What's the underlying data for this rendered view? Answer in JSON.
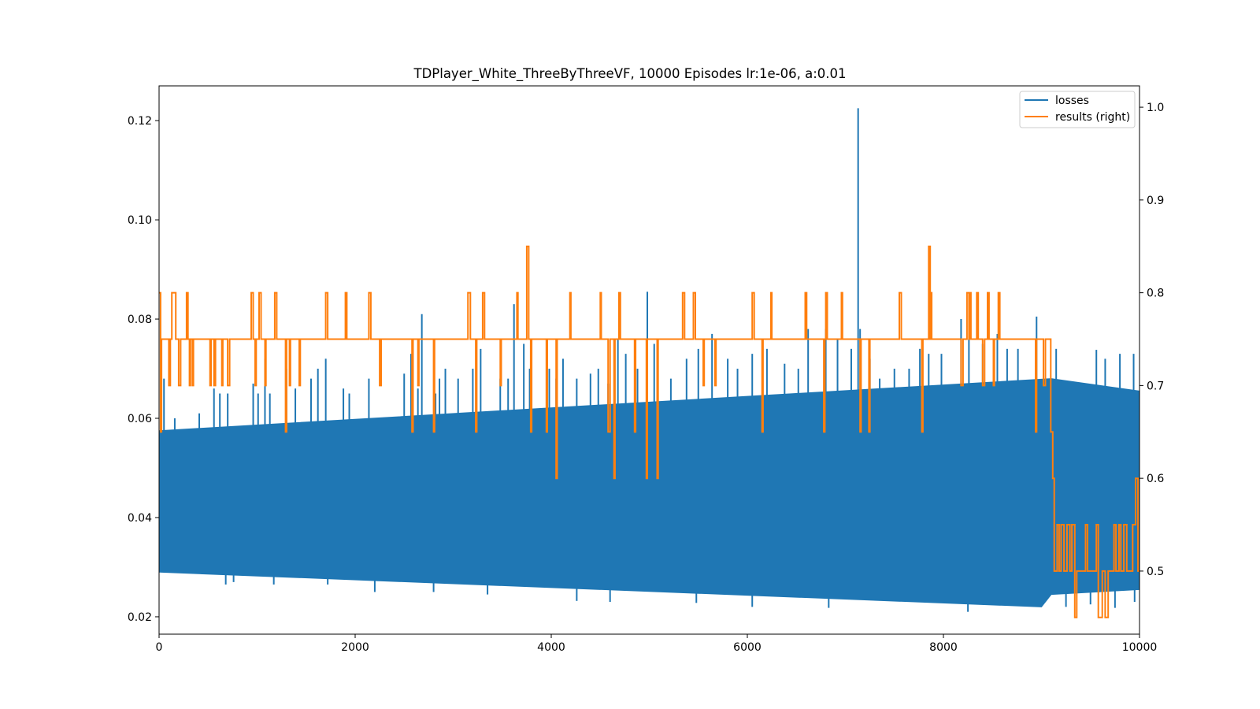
{
  "colors": {
    "losses": "#1f77b4",
    "results": "#ff7f0e"
  },
  "chart_data": {
    "type": "line",
    "title": "TDPlayer_White_ThreeByThreeVF, 10000 Episodes lr:1e-06, a:0.01",
    "xlabel": "",
    "ylabel": "",
    "xlim": [
      0,
      10000
    ],
    "ylim_left": [
      0.0165,
      0.127
    ],
    "ylim_right": [
      0.432,
      1.023
    ],
    "x_ticks": [
      0,
      2000,
      4000,
      6000,
      8000,
      10000
    ],
    "x_tick_labels": [
      "0",
      "2000",
      "4000",
      "6000",
      "8000",
      "10000"
    ],
    "y_left_ticks": [
      0.02,
      0.04,
      0.06,
      0.08,
      0.1,
      0.12
    ],
    "y_left_tick_labels": [
      "0.02",
      "0.04",
      "0.06",
      "0.08",
      "0.10",
      "0.12"
    ],
    "y_right_ticks": [
      0.5,
      0.6,
      0.7,
      0.8,
      0.9,
      1.0
    ],
    "y_right_tick_labels": [
      "0.5",
      "0.6",
      "0.7",
      "0.8",
      "0.9",
      "1.0"
    ],
    "legend": {
      "position": "top-right",
      "entries": [
        "losses",
        "results (right)"
      ]
    },
    "series": [
      {
        "name": "losses",
        "axis": "left",
        "description": "dense oscillating series; band bounds and spikes",
        "band_upper": {
          "x": [
            0,
            9100,
            10000
          ],
          "y": [
            0.0575,
            0.068,
            0.0655
          ]
        },
        "band_lower": {
          "x": [
            0,
            9000,
            9100,
            10000
          ],
          "y": [
            0.029,
            0.022,
            0.0245,
            0.0255
          ]
        },
        "spikes_high": [
          [
            50,
            0.068
          ],
          [
            160,
            0.06
          ],
          [
            410,
            0.061
          ],
          [
            560,
            0.066
          ],
          [
            620,
            0.065
          ],
          [
            700,
            0.065
          ],
          [
            960,
            0.067
          ],
          [
            1010,
            0.065
          ],
          [
            1080,
            0.072
          ],
          [
            1130,
            0.065
          ],
          [
            1300,
            0.07
          ],
          [
            1390,
            0.066
          ],
          [
            1550,
            0.068
          ],
          [
            1620,
            0.07
          ],
          [
            1700,
            0.072
          ],
          [
            1880,
            0.066
          ],
          [
            1940,
            0.065
          ],
          [
            2140,
            0.068
          ],
          [
            2500,
            0.069
          ],
          [
            2570,
            0.073
          ],
          [
            2640,
            0.066
          ],
          [
            2680,
            0.081
          ],
          [
            2820,
            0.065
          ],
          [
            2860,
            0.068
          ],
          [
            2920,
            0.07
          ],
          [
            3050,
            0.068
          ],
          [
            3200,
            0.07
          ],
          [
            3280,
            0.074
          ],
          [
            3480,
            0.068
          ],
          [
            3560,
            0.068
          ],
          [
            3620,
            0.083
          ],
          [
            3720,
            0.075
          ],
          [
            3780,
            0.07
          ],
          [
            3980,
            0.07
          ],
          [
            4050,
            0.068
          ],
          [
            4120,
            0.072
          ],
          [
            4260,
            0.068
          ],
          [
            4400,
            0.069
          ],
          [
            4480,
            0.07
          ],
          [
            4580,
            0.067
          ],
          [
            4680,
            0.076
          ],
          [
            4760,
            0.073
          ],
          [
            4880,
            0.07
          ],
          [
            4980,
            0.0855
          ],
          [
            5050,
            0.075
          ],
          [
            5220,
            0.068
          ],
          [
            5380,
            0.072
          ],
          [
            5500,
            0.074
          ],
          [
            5640,
            0.077
          ],
          [
            5800,
            0.072
          ],
          [
            5900,
            0.07
          ],
          [
            6050,
            0.073
          ],
          [
            6200,
            0.074
          ],
          [
            6380,
            0.071
          ],
          [
            6520,
            0.07
          ],
          [
            6620,
            0.078
          ],
          [
            6800,
            0.078
          ],
          [
            6920,
            0.076
          ],
          [
            7060,
            0.074
          ],
          [
            7130,
            0.1225
          ],
          [
            7150,
            0.078
          ],
          [
            7250,
            0.072
          ],
          [
            7350,
            0.068
          ],
          [
            7500,
            0.07
          ],
          [
            7650,
            0.07
          ],
          [
            7760,
            0.074
          ],
          [
            7850,
            0.073
          ],
          [
            7980,
            0.073
          ],
          [
            8180,
            0.08
          ],
          [
            8260,
            0.076
          ],
          [
            8400,
            0.075
          ],
          [
            8550,
            0.077
          ],
          [
            8650,
            0.074
          ],
          [
            8760,
            0.074
          ],
          [
            8950,
            0.0805
          ],
          [
            9150,
            0.074
          ],
          [
            9560,
            0.0738
          ],
          [
            9650,
            0.072
          ],
          [
            9800,
            0.073
          ],
          [
            9940,
            0.073
          ]
        ],
        "spikes_low": [
          [
            680,
            0.0265
          ],
          [
            760,
            0.027
          ],
          [
            1170,
            0.0265
          ],
          [
            1720,
            0.0265
          ],
          [
            2200,
            0.025
          ],
          [
            2800,
            0.025
          ],
          [
            3350,
            0.0245
          ],
          [
            4260,
            0.0232
          ],
          [
            4600,
            0.023
          ],
          [
            5480,
            0.0228
          ],
          [
            6050,
            0.022
          ],
          [
            6830,
            0.0218
          ],
          [
            8250,
            0.021
          ],
          [
            9250,
            0.022
          ],
          [
            9500,
            0.0225
          ],
          [
            9750,
            0.0218
          ],
          [
            9950,
            0.023
          ]
        ]
      },
      {
        "name": "results (right)",
        "axis": "right",
        "description": "step line, base level 0.75",
        "base": 0.75,
        "excursions": [
          [
            0,
            15,
            0.8
          ],
          [
            15,
            25,
            0.65
          ],
          [
            100,
            115,
            0.7
          ],
          [
            130,
            170,
            0.8
          ],
          [
            200,
            220,
            0.7
          ],
          [
            280,
            295,
            0.8
          ],
          [
            310,
            320,
            0.7
          ],
          [
            340,
            350,
            0.7
          ],
          [
            520,
            530,
            0.7
          ],
          [
            560,
            575,
            0.7
          ],
          [
            640,
            650,
            0.7
          ],
          [
            700,
            720,
            0.7
          ],
          [
            940,
            960,
            0.8
          ],
          [
            980,
            990,
            0.7
          ],
          [
            1020,
            1040,
            0.8
          ],
          [
            1080,
            1090,
            0.7
          ],
          [
            1180,
            1200,
            0.8
          ],
          [
            1290,
            1300,
            0.65
          ],
          [
            1330,
            1340,
            0.7
          ],
          [
            1430,
            1440,
            0.7
          ],
          [
            1700,
            1720,
            0.8
          ],
          [
            1900,
            1915,
            0.8
          ],
          [
            2140,
            2160,
            0.8
          ],
          [
            2250,
            2265,
            0.7
          ],
          [
            2580,
            2590,
            0.65
          ],
          [
            2640,
            2650,
            0.7
          ],
          [
            2800,
            2810,
            0.65
          ],
          [
            3150,
            3175,
            0.8
          ],
          [
            3230,
            3240,
            0.65
          ],
          [
            3300,
            3320,
            0.8
          ],
          [
            3480,
            3490,
            0.7
          ],
          [
            3650,
            3660,
            0.8
          ],
          [
            3750,
            3770,
            0.85
          ],
          [
            3790,
            3800,
            0.65
          ],
          [
            3950,
            3960,
            0.65
          ],
          [
            4050,
            4060,
            0.6
          ],
          [
            4190,
            4200,
            0.8
          ],
          [
            4500,
            4510,
            0.8
          ],
          [
            4580,
            4600,
            0.65
          ],
          [
            4640,
            4650,
            0.6
          ],
          [
            4690,
            4705,
            0.8
          ],
          [
            4850,
            4860,
            0.65
          ],
          [
            4970,
            4980,
            0.6
          ],
          [
            5080,
            5090,
            0.6
          ],
          [
            5340,
            5360,
            0.8
          ],
          [
            5450,
            5470,
            0.8
          ],
          [
            5550,
            5560,
            0.7
          ],
          [
            5670,
            5680,
            0.7
          ],
          [
            6050,
            6070,
            0.8
          ],
          [
            6150,
            6160,
            0.65
          ],
          [
            6240,
            6250,
            0.8
          ],
          [
            6590,
            6605,
            0.8
          ],
          [
            6780,
            6790,
            0.65
          ],
          [
            6800,
            6815,
            0.8
          ],
          [
            6960,
            6970,
            0.8
          ],
          [
            7150,
            7160,
            0.65
          ],
          [
            7240,
            7250,
            0.65
          ],
          [
            7550,
            7570,
            0.8
          ],
          [
            7780,
            7790,
            0.65
          ],
          [
            7850,
            7865,
            0.85
          ],
          [
            7870,
            7880,
            0.8
          ],
          [
            8180,
            8200,
            0.7
          ],
          [
            8240,
            8260,
            0.8
          ],
          [
            8270,
            8280,
            0.8
          ],
          [
            8340,
            8355,
            0.8
          ],
          [
            8400,
            8420,
            0.7
          ],
          [
            8450,
            8465,
            0.8
          ],
          [
            8510,
            8520,
            0.7
          ],
          [
            8560,
            8575,
            0.8
          ],
          [
            8940,
            8950,
            0.65
          ],
          [
            9020,
            9040,
            0.7
          ]
        ],
        "tail_steps": [
          [
            9095,
            0.65
          ],
          [
            9115,
            0.6
          ],
          [
            9130,
            0.5
          ],
          [
            9160,
            0.55
          ],
          [
            9180,
            0.5
          ],
          [
            9200,
            0.55
          ],
          [
            9230,
            0.5
          ],
          [
            9260,
            0.55
          ],
          [
            9290,
            0.5
          ],
          [
            9310,
            0.55
          ],
          [
            9340,
            0.45
          ],
          [
            9360,
            0.5
          ],
          [
            9450,
            0.55
          ],
          [
            9470,
            0.5
          ],
          [
            9560,
            0.55
          ],
          [
            9580,
            0.45
          ],
          [
            9620,
            0.5
          ],
          [
            9650,
            0.45
          ],
          [
            9680,
            0.5
          ],
          [
            9740,
            0.55
          ],
          [
            9760,
            0.5
          ],
          [
            9790,
            0.55
          ],
          [
            9810,
            0.5
          ],
          [
            9840,
            0.55
          ],
          [
            9870,
            0.5
          ],
          [
            9930,
            0.55
          ],
          [
            9960,
            0.6
          ],
          [
            9985,
            0.5
          ]
        ]
      }
    ]
  }
}
